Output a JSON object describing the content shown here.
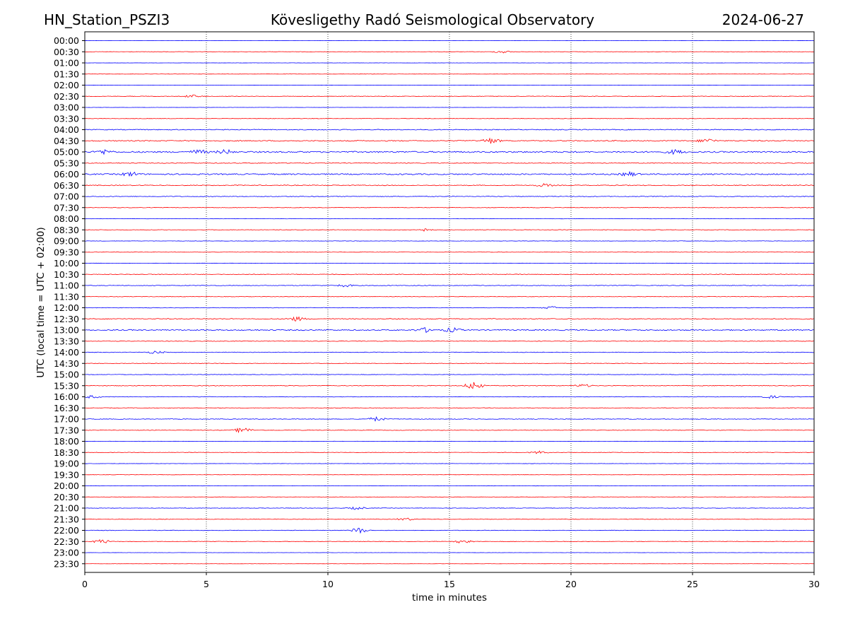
{
  "header": {
    "station": "HN_Station_PSZI3",
    "observatory": "Kövesligethy Radó Seismological Observatory",
    "date": "2024-06-27"
  },
  "chart_data": {
    "type": "line",
    "title": "Kövesligethy Radó Seismological Observatory",
    "xlabel": "time in minutes",
    "ylabel": "UTC (local time = UTC + 02:00)",
    "xlim": [
      0,
      30
    ],
    "xticks": [
      0,
      5,
      10,
      15,
      20,
      25,
      30
    ],
    "xgrid": [
      5,
      10,
      15,
      20,
      25
    ],
    "grid": "vertical dotted",
    "rows": [
      "00:00",
      "00:30",
      "01:00",
      "01:30",
      "02:00",
      "02:30",
      "03:00",
      "03:30",
      "04:00",
      "04:30",
      "05:00",
      "05:30",
      "06:00",
      "06:30",
      "07:00",
      "07:30",
      "08:00",
      "08:30",
      "09:00",
      "09:30",
      "10:00",
      "10:30",
      "11:00",
      "11:30",
      "12:00",
      "12:30",
      "13:00",
      "13:30",
      "14:00",
      "14:30",
      "15:00",
      "15:30",
      "16:00",
      "16:30",
      "17:00",
      "17:30",
      "18:00",
      "18:30",
      "19:00",
      "19:30",
      "20:00",
      "20:30",
      "21:00",
      "21:30",
      "22:00",
      "22:30",
      "23:00",
      "23:30"
    ],
    "colors": [
      "#0000ff",
      "#ff0000"
    ],
    "noise": [
      0.15,
      0.25,
      0.12,
      0.18,
      0.12,
      0.35,
      0.15,
      0.3,
      0.55,
      0.7,
      0.95,
      0.5,
      0.85,
      0.55,
      0.45,
      0.35,
      0.25,
      0.35,
      0.25,
      0.25,
      0.2,
      0.45,
      0.4,
      0.3,
      0.35,
      0.6,
      0.75,
      0.4,
      0.4,
      0.35,
      0.3,
      0.45,
      0.35,
      0.3,
      0.4,
      0.35,
      0.2,
      0.3,
      0.2,
      0.2,
      0.2,
      0.2,
      0.3,
      0.3,
      0.35,
      0.3,
      0.15,
      0.15
    ],
    "events": [
      {
        "row": 1,
        "t": 17.2,
        "amp": 2
      },
      {
        "row": 5,
        "t": 4.4,
        "amp": 2
      },
      {
        "row": 9,
        "t": 16.7,
        "amp": 4
      },
      {
        "row": 9,
        "t": 25.6,
        "amp": 3
      },
      {
        "row": 10,
        "t": 0.8,
        "amp": 3
      },
      {
        "row": 10,
        "t": 4.7,
        "amp": 3
      },
      {
        "row": 10,
        "t": 5.8,
        "amp": 3
      },
      {
        "row": 10,
        "t": 24.3,
        "amp": 3
      },
      {
        "row": 12,
        "t": 1.9,
        "amp": 3
      },
      {
        "row": 12,
        "t": 22.4,
        "amp": 3
      },
      {
        "row": 13,
        "t": 18.9,
        "amp": 2
      },
      {
        "row": 17,
        "t": 13.9,
        "amp": 2
      },
      {
        "row": 22,
        "t": 10.7,
        "amp": 2
      },
      {
        "row": 24,
        "t": 19.2,
        "amp": 2
      },
      {
        "row": 25,
        "t": 8.7,
        "amp": 3
      },
      {
        "row": 26,
        "t": 14.0,
        "amp": 3
      },
      {
        "row": 26,
        "t": 15.1,
        "amp": 3
      },
      {
        "row": 28,
        "t": 2.9,
        "amp": 2
      },
      {
        "row": 31,
        "t": 16.0,
        "amp": 6
      },
      {
        "row": 31,
        "t": 20.5,
        "amp": 2
      },
      {
        "row": 32,
        "t": 0.3,
        "amp": 2
      },
      {
        "row": 32,
        "t": 28.2,
        "amp": 2
      },
      {
        "row": 34,
        "t": 12.0,
        "amp": 3
      },
      {
        "row": 35,
        "t": 6.5,
        "amp": 4
      },
      {
        "row": 37,
        "t": 18.7,
        "amp": 2
      },
      {
        "row": 42,
        "t": 11.2,
        "amp": 2
      },
      {
        "row": 43,
        "t": 13.2,
        "amp": 2
      },
      {
        "row": 44,
        "t": 11.3,
        "amp": 4
      },
      {
        "row": 45,
        "t": 0.7,
        "amp": 3
      },
      {
        "row": 45,
        "t": 15.6,
        "amp": 3
      }
    ]
  }
}
